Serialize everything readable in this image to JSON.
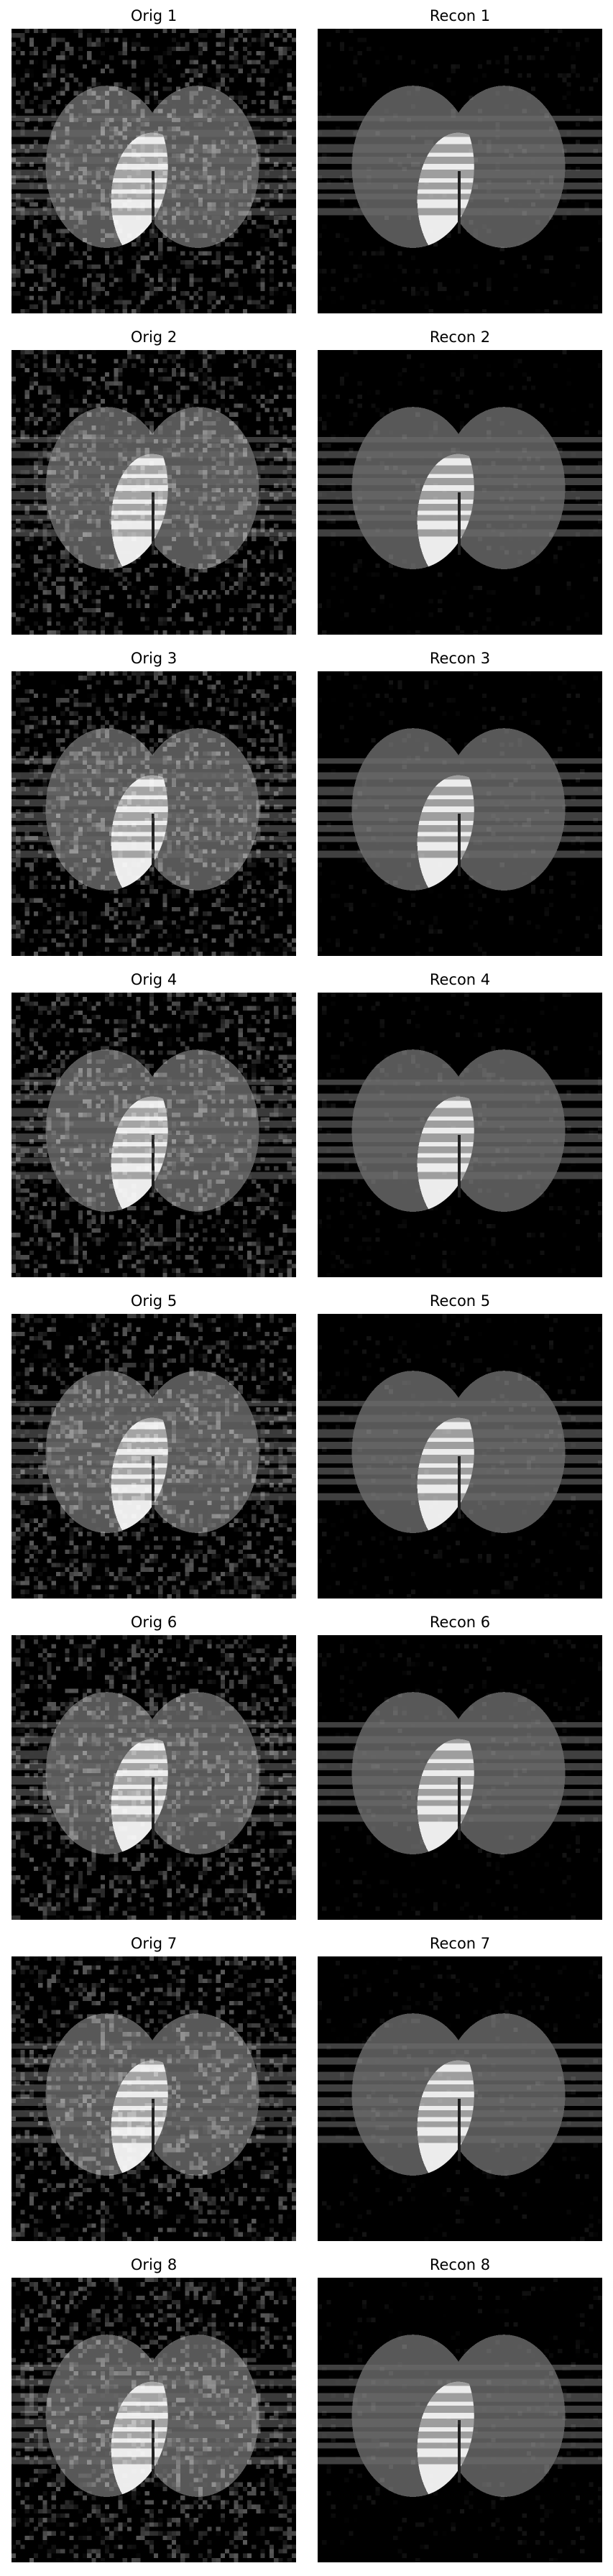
{
  "figure": {
    "rows": [
      {
        "orig_title": "Orig 1",
        "recon_title": "Recon 1"
      },
      {
        "orig_title": "Orig 2",
        "recon_title": "Recon 2"
      },
      {
        "orig_title": "Orig 3",
        "recon_title": "Recon 3"
      },
      {
        "orig_title": "Orig 4",
        "recon_title": "Recon 4"
      },
      {
        "orig_title": "Orig 5",
        "recon_title": "Recon 5"
      },
      {
        "orig_title": "Orig 6",
        "recon_title": "Recon 6"
      },
      {
        "orig_title": "Orig 7",
        "recon_title": "Recon 7"
      },
      {
        "orig_title": "Orig 8",
        "recon_title": "Recon 8"
      }
    ]
  },
  "colors": {
    "background": "#000000",
    "ellipse_gray": "#585858",
    "overlap_white": "#ececec",
    "stripe_gray": "#6a6a6a",
    "divider": "#202020"
  }
}
